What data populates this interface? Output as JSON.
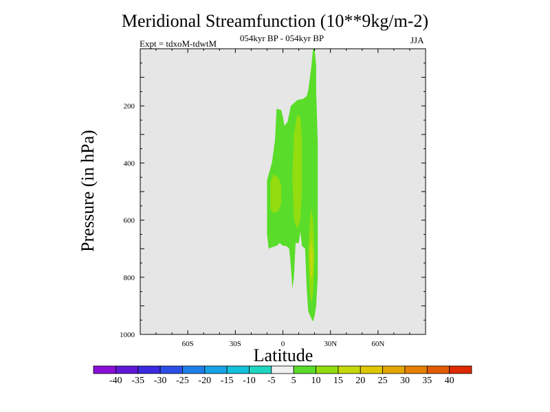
{
  "chart_data": {
    "type": "contour",
    "title": "Meridional Streamfunction (10**9kg/m-2)",
    "subtitle": "054kyr BP - 054kyr BP",
    "experiment_label": "Expt = tdxoM-tdwtM",
    "season": "JJA",
    "xlabel": "Latitude",
    "ylabel": "Pressure (in hPa)",
    "xlim": [
      -90,
      90
    ],
    "ylim": [
      1000,
      0
    ],
    "x_ticks": [
      {
        "value": -60,
        "label": "60S"
      },
      {
        "value": -30,
        "label": "30S"
      },
      {
        "value": 0,
        "label": "0"
      },
      {
        "value": 30,
        "label": "30N"
      },
      {
        "value": 60,
        "label": "60N"
      }
    ],
    "y_ticks": [
      {
        "value": 200,
        "label": "200"
      },
      {
        "value": 400,
        "label": "400"
      },
      {
        "value": 600,
        "label": "600"
      },
      {
        "value": 800,
        "label": "800"
      },
      {
        "value": 1000,
        "label": "1000"
      }
    ],
    "background_color": "#e6e6e6",
    "colorbar": {
      "labels": [
        "-40",
        "-35",
        "-30",
        "-25",
        "-20",
        "-15",
        "-10",
        "-5",
        "5",
        "10",
        "15",
        "20",
        "25",
        "30",
        "35",
        "40"
      ],
      "colors": [
        "#8a0fd8",
        "#5f18d8",
        "#3b2ae0",
        "#2c50e6",
        "#1e7fe8",
        "#17a4e6",
        "#13c0dc",
        "#1fd6c0",
        "#f0f0f0",
        "#59dd2a",
        "#93dc10",
        "#c4d80a",
        "#dec600",
        "#e3a500",
        "#e58000",
        "#e35a00",
        "#dd2a00"
      ]
    },
    "contours": [
      {
        "name": "main-cell",
        "level": "5",
        "color": "#59dd2a",
        "points": [
          [
            -9,
            700
          ],
          [
            -10,
            650
          ],
          [
            -10,
            460
          ],
          [
            -7,
            400
          ],
          [
            -5,
            320
          ],
          [
            -4,
            210
          ],
          [
            -1,
            215
          ],
          [
            0,
            240
          ],
          [
            1,
            270
          ],
          [
            3,
            255
          ],
          [
            5,
            200
          ],
          [
            9,
            180
          ],
          [
            13,
            175
          ],
          [
            15,
            165
          ],
          [
            16,
            145
          ],
          [
            18,
            60
          ],
          [
            19,
            0
          ],
          [
            20,
            0
          ],
          [
            21,
            60
          ],
          [
            21,
            150
          ],
          [
            22,
            330
          ],
          [
            22,
            430
          ],
          [
            22,
            640
          ],
          [
            22,
            800
          ],
          [
            21,
            900
          ],
          [
            20,
            935
          ],
          [
            19,
            955
          ],
          [
            18,
            945
          ],
          [
            16,
            920
          ],
          [
            15,
            840
          ],
          [
            14,
            700
          ],
          [
            12,
            690
          ],
          [
            11,
            640
          ],
          [
            10,
            680
          ],
          [
            8,
            680
          ],
          [
            7,
            800
          ],
          [
            6,
            840
          ],
          [
            5,
            760
          ],
          [
            4,
            700
          ],
          [
            2,
            690
          ],
          [
            0,
            690
          ],
          [
            -2,
            680
          ],
          [
            -4,
            690
          ],
          [
            -7,
            695
          ]
        ]
      },
      {
        "name": "cell-north-core",
        "level": "10",
        "color": "#93dc10",
        "points": [
          [
            7,
            600
          ],
          [
            6,
            450
          ],
          [
            7,
            300
          ],
          [
            9,
            230
          ],
          [
            11,
            240
          ],
          [
            12,
            310
          ],
          [
            12,
            500
          ],
          [
            11,
            600
          ],
          [
            9,
            630
          ]
        ]
      },
      {
        "name": "cell-south-core",
        "level": "10",
        "color": "#93dc10",
        "points": [
          [
            -8,
            560
          ],
          [
            -8,
            470
          ],
          [
            -6,
            440
          ],
          [
            -3,
            450
          ],
          [
            -1,
            480
          ],
          [
            -1,
            540
          ],
          [
            -3,
            570
          ],
          [
            -6,
            575
          ]
        ]
      },
      {
        "name": "cell-deep-core",
        "level": "10",
        "color": "#93dc10",
        "points": [
          [
            17,
            850
          ],
          [
            16,
            720
          ],
          [
            17,
            600
          ],
          [
            18,
            560
          ],
          [
            19,
            600
          ],
          [
            20,
            720
          ],
          [
            19,
            850
          ],
          [
            18,
            890
          ]
        ]
      },
      {
        "name": "cell-deep-inner",
        "level": "15",
        "color": "#c4d80a",
        "points": [
          [
            17.5,
            800
          ],
          [
            17,
            720
          ],
          [
            18,
            660
          ],
          [
            19,
            720
          ],
          [
            18.7,
            800
          ]
        ]
      }
    ]
  }
}
